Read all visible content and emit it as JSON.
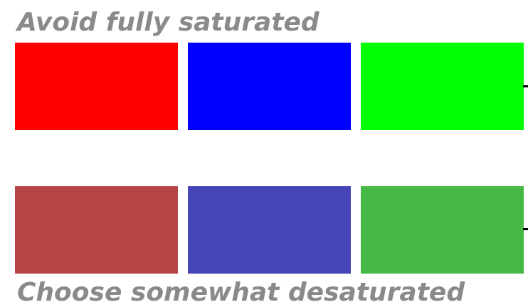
{
  "top_caption": "Avoid fully saturated",
  "bottom_caption": "Choose somewhat desaturated",
  "saturated_swatches": [
    {
      "name": "red",
      "color": "#ff0000"
    },
    {
      "name": "blue",
      "color": "#0000ff"
    },
    {
      "name": "green",
      "color": "#00ff00"
    }
  ],
  "desaturated_swatches": [
    {
      "name": "red",
      "color": "#b84545"
    },
    {
      "name": "blue",
      "color": "#4545b8"
    },
    {
      "name": "green",
      "color": "#45b845"
    }
  ],
  "caption_color": "#8a8a8a"
}
